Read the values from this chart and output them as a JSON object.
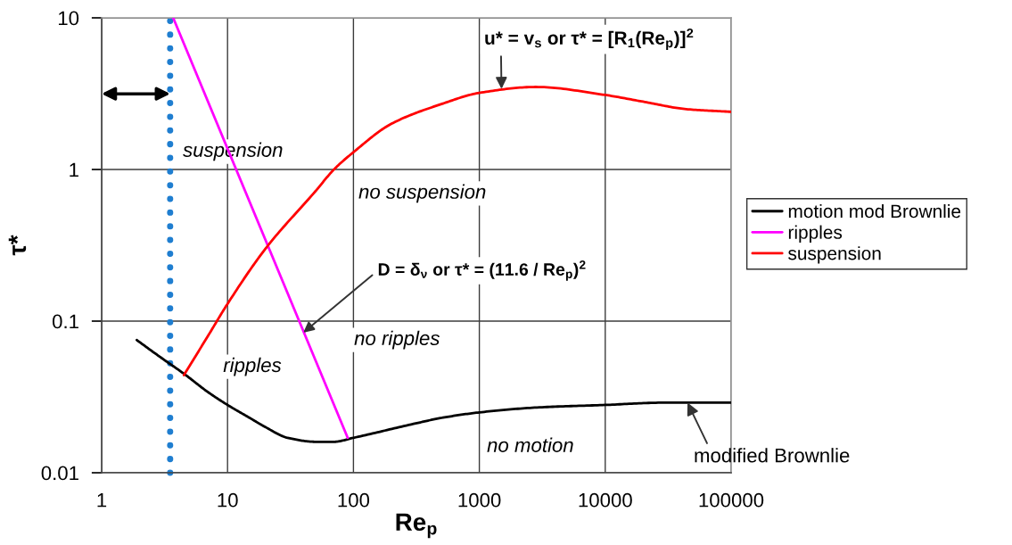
{
  "chart_data": {
    "type": "line",
    "xlabel": "Re$_{p}$",
    "ylabel": "τ*",
    "log": "xy",
    "xlim": [
      1,
      100000
    ],
    "ylim": [
      0.01,
      10
    ],
    "xticks": [
      1,
      10,
      100,
      1000,
      10000,
      100000
    ],
    "yticks": [
      0.01,
      0.1,
      1,
      10
    ],
    "grid": true,
    "legend": "right",
    "series": [
      {
        "name": "motion mod Brownlie",
        "color": "#000000",
        "x": [
          1.9,
          3,
          4.5,
          7,
          10,
          15,
          20,
          30,
          50,
          70,
          100,
          300,
          500,
          1000,
          3000,
          10000,
          30000,
          100000
        ],
        "values": [
          0.075,
          0.057,
          0.045,
          0.034,
          0.028,
          0.023,
          0.02,
          0.017,
          0.016,
          0.016,
          0.017,
          0.021,
          0.023,
          0.025,
          0.027,
          0.028,
          0.029,
          0.029
        ]
      },
      {
        "name": "ripples",
        "color": "#ff00ff",
        "x": [
          3.7,
          90
        ],
        "values": [
          10,
          0.017
        ]
      },
      {
        "name": "suspension",
        "color": "#ff0000",
        "x": [
          4.5,
          7,
          10,
          20,
          50,
          70,
          100,
          200,
          500,
          1000,
          2800,
          10000,
          20000,
          44000,
          100000
        ],
        "values": [
          0.044,
          0.08,
          0.13,
          0.3,
          0.72,
          1.0,
          1.3,
          2.0,
          2.7,
          3.2,
          3.5,
          3.1,
          2.8,
          2.5,
          2.4
        ]
      }
    ],
    "ref_lines": [
      {
        "axis": "x",
        "value": 3.5,
        "color": "#1f7ed0",
        "line_style": "dotted"
      }
    ],
    "annotations": [
      "suspension",
      "no suspension",
      "ripples",
      "no ripples",
      "no motion",
      {
        "text": "D = δ$_{ν}$ or τ* = (11.6 / Re$_{p}$)$^{2}$",
        "x": 40,
        "y": 0.084
      },
      {
        "text": "u* = v$_{s}$ or τ* = [R$_{1}$(Re$_{p}$)]$^{2}$",
        "x": 1500,
        "y": 3.4
      },
      {
        "text": "modified Brownlie",
        "x": 45000,
        "y": 0.029
      }
    ]
  }
}
